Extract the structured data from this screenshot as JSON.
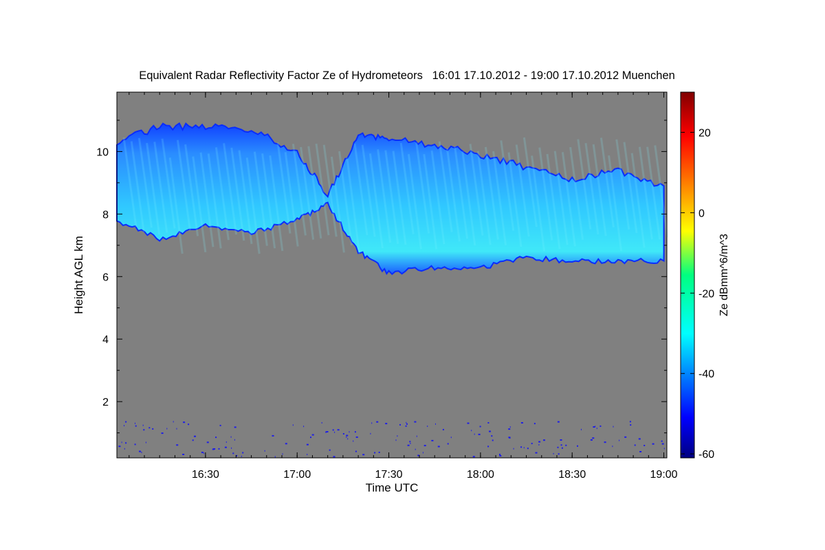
{
  "chart_data": {
    "type": "heatmap",
    "title": "Equivalent Radar Reflectivity Factor Ze of Hydrometeors   16:01 17.10.2012 - 19:00 17.10.2012 Muenchen",
    "xlabel": "Time UTC",
    "ylabel": "Height AGL km",
    "x_ticks": [
      "16:30",
      "17:00",
      "17:30",
      "18:00",
      "18:30",
      "19:00"
    ],
    "y_ticks": [
      2,
      4,
      6,
      8,
      10
    ],
    "xlim": [
      "16:01",
      "19:01"
    ],
    "ylim": [
      0.2,
      11.9
    ],
    "background_color": "#808080",
    "colorbar": {
      "label": "Ze dBmm^6/m^3",
      "ticks": [
        -60,
        -40,
        -20,
        0,
        20
      ],
      "range": [
        -61,
        30
      ],
      "colormap": "jet"
    },
    "cloud_layer": {
      "description_points": [
        {
          "time": "16:01",
          "top_km": 10.3,
          "base_km": 7.8
        },
        {
          "time": "16:15",
          "top_km": 10.8,
          "base_km": 7.2
        },
        {
          "time": "16:30",
          "top_km": 10.8,
          "base_km": 7.6
        },
        {
          "time": "16:45",
          "top_km": 10.7,
          "base_km": 7.4
        },
        {
          "time": "17:00",
          "top_km": 10.0,
          "base_km": 7.8
        },
        {
          "time": "17:10",
          "top_km": 8.6,
          "base_km": 8.3
        },
        {
          "time": "17:20",
          "top_km": 10.5,
          "base_km": 6.8
        },
        {
          "time": "17:30",
          "top_km": 10.4,
          "base_km": 6.1
        },
        {
          "time": "17:45",
          "top_km": 10.2,
          "base_km": 6.3
        },
        {
          "time": "18:00",
          "top_km": 9.9,
          "base_km": 6.3
        },
        {
          "time": "18:15",
          "top_km": 9.5,
          "base_km": 6.6
        },
        {
          "time": "18:30",
          "top_km": 9.1,
          "base_km": 6.5
        },
        {
          "time": "18:45",
          "top_km": 9.4,
          "base_km": 6.5
        },
        {
          "time": "19:00",
          "top_km": 8.9,
          "base_km": 6.5
        }
      ],
      "typical_ze_dbz": -35
    }
  }
}
